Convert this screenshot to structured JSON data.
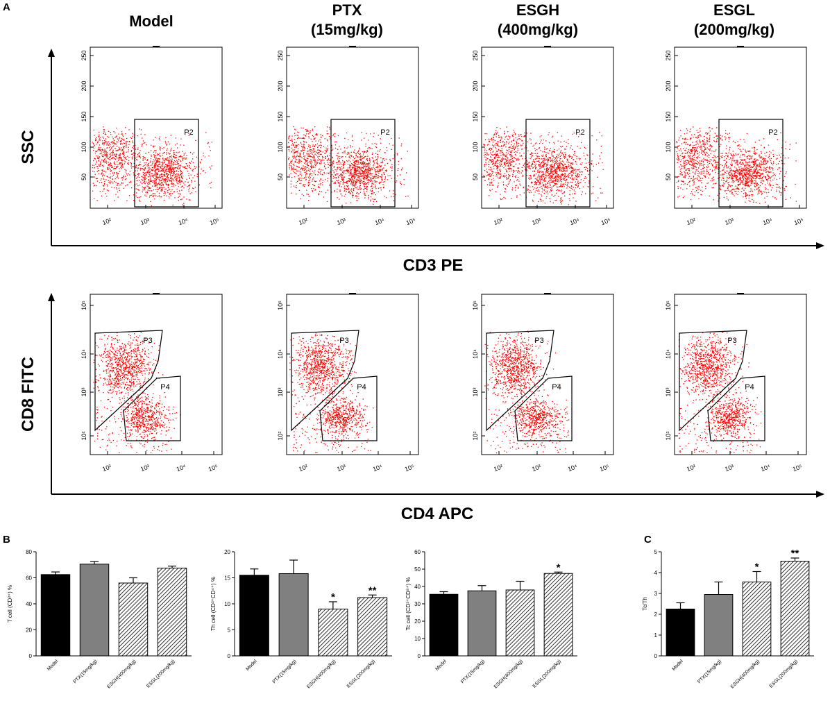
{
  "panel_labels": {
    "A": "A",
    "B": "B",
    "C": "C"
  },
  "flow_cytometry": {
    "column_titles": [
      {
        "line1": "Model",
        "line2": ""
      },
      {
        "line1": "PTX",
        "line2": "(15mg/kg)"
      },
      {
        "line1": "ESGH",
        "line2": "(400mg/kg)"
      },
      {
        "line1": "ESGL",
        "line2": "(200mg/kg)"
      }
    ],
    "row1": {
      "y_axis_title": "SSC",
      "x_axis_title": "CD3 PE",
      "gate": "P2",
      "y_ticks": [
        "50",
        "100",
        "150",
        "200",
        "250"
      ],
      "x_ticks": [
        "10²",
        "10³",
        "10⁴",
        "10⁵"
      ]
    },
    "row2": {
      "y_axis_title": "CD8 FITC",
      "x_axis_title": "CD4 APC",
      "gates": [
        "P3",
        "P4"
      ],
      "y_ticks": [
        "10²",
        "10³",
        "10⁴",
        "10⁵"
      ],
      "x_ticks": [
        "10²",
        "10³",
        "10⁴",
        "10⁵"
      ]
    },
    "dot_color": "#ff0000"
  },
  "chart_data": [
    {
      "type": "bar",
      "panel": "B",
      "ylabel": "T cell (CD³⁺) %",
      "categories": [
        "Model",
        "PTX(15mg/kg)",
        "ESGH(400mg/kg)",
        "ESGL(200mg/kg)"
      ],
      "values": [
        62.5,
        70.5,
        56,
        67.5
      ],
      "errors": [
        2,
        2,
        4,
        1.5
      ],
      "significance": [
        "",
        "",
        "",
        ""
      ],
      "ylim": [
        0,
        80
      ],
      "yticks": [
        0,
        20,
        40,
        60,
        80
      ]
    },
    {
      "type": "bar",
      "panel": "B",
      "ylabel": "Th cell (CD³⁺CD⁴⁺) %",
      "categories": [
        "Model",
        "PTX(15mg/kg)",
        "ESGH(400mg/kg)",
        "ESGL(200mg/kg)"
      ],
      "values": [
        15.5,
        15.8,
        9,
        11.2
      ],
      "errors": [
        1.2,
        2.6,
        1.4,
        0.5
      ],
      "significance": [
        "",
        "",
        "*",
        "**"
      ],
      "ylim": [
        0,
        20
      ],
      "yticks": [
        0,
        5,
        10,
        15,
        20
      ]
    },
    {
      "type": "bar",
      "panel": "B",
      "ylabel": "Tc cell (CD³⁺CD⁸⁺) %",
      "categories": [
        "Model",
        "PTX(15mg/kg)",
        "ESGH(400mg/kg)",
        "ESGL(200mg/kg)"
      ],
      "values": [
        35.5,
        37.5,
        38,
        47.5
      ],
      "errors": [
        1.5,
        3,
        5,
        0.8
      ],
      "significance": [
        "",
        "",
        "",
        "*"
      ],
      "ylim": [
        0,
        60
      ],
      "yticks": [
        0,
        10,
        20,
        30,
        40,
        50,
        60
      ]
    },
    {
      "type": "bar",
      "panel": "C",
      "ylabel": "Tc/Th",
      "categories": [
        "Model",
        "PTX(15mg/kg)",
        "ESGH(400mg/kg)",
        "ESGL(200mg/kg)"
      ],
      "values": [
        2.25,
        2.95,
        3.55,
        4.55
      ],
      "errors": [
        0.3,
        0.6,
        0.5,
        0.15
      ],
      "significance": [
        "",
        "",
        "*",
        "**"
      ],
      "ylim": [
        0,
        5
      ],
      "yticks": [
        0,
        1,
        2,
        3,
        4,
        5
      ]
    }
  ],
  "bar_fills": [
    "#000000",
    "#808080",
    "hatch",
    "hatch"
  ]
}
